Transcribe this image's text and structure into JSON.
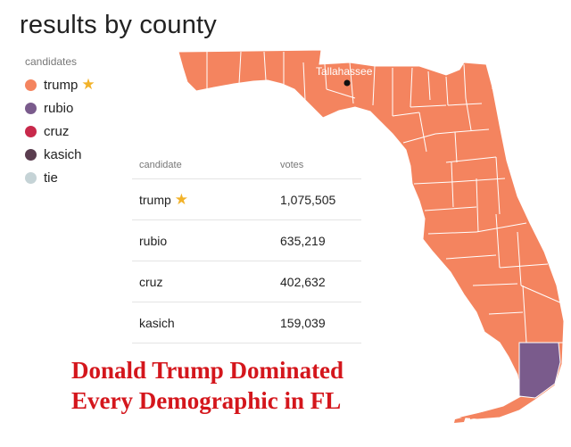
{
  "title": "results by county",
  "legend": {
    "title": "candidates",
    "items": [
      {
        "label": "trump",
        "color": "#f4845f",
        "winner": true
      },
      {
        "label": "rubio",
        "color": "#7a5b8c",
        "winner": false
      },
      {
        "label": "cruz",
        "color": "#c8294b",
        "winner": false
      },
      {
        "label": "kasich",
        "color": "#5a3d4f",
        "winner": false
      },
      {
        "label": "tie",
        "color": "#c5d3d6",
        "winner": false
      }
    ]
  },
  "map": {
    "capital_label": "Tallahassee",
    "state_color": "#f4845f",
    "county_line_color": "#ffffff",
    "miami_dade_color": "#7a5b8c"
  },
  "table": {
    "headers": {
      "candidate": "candidate",
      "votes": "votes"
    },
    "rows": [
      {
        "candidate": "trump",
        "votes": "1,075,505",
        "winner": true
      },
      {
        "candidate": "rubio",
        "votes": "635,219",
        "winner": false
      },
      {
        "candidate": "cruz",
        "votes": "402,632",
        "winner": false
      },
      {
        "candidate": "kasich",
        "votes": "159,039",
        "winner": false
      }
    ]
  },
  "icons": {
    "winner": "star-icon"
  },
  "star_glyph": "★",
  "headline": {
    "line1": "Donald Trump Dominated",
    "line2": "Every Demographic in FL"
  }
}
